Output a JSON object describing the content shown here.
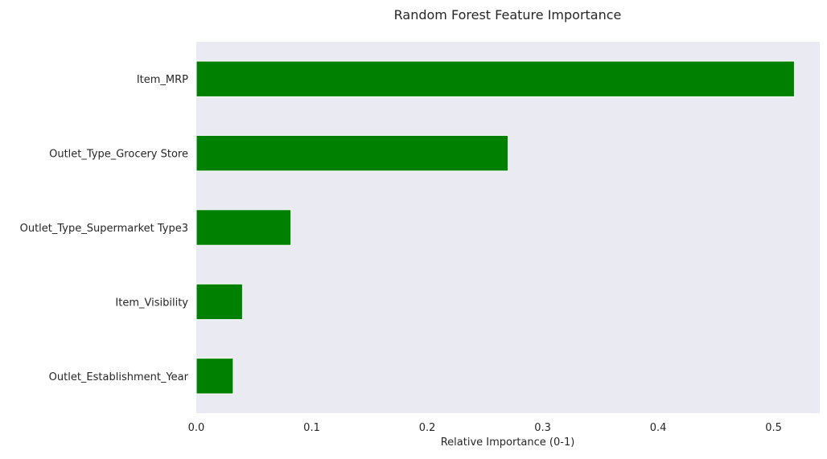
{
  "chart_data": {
    "type": "bar",
    "orientation": "horizontal",
    "title": "Random Forest Feature Importance",
    "xlabel": "Relative Importance (0-1)",
    "ylabel": "",
    "xlim": [
      0,
      0.54
    ],
    "xticks": [
      "0.0",
      "0.1",
      "0.2",
      "0.3",
      "0.4",
      "0.5"
    ],
    "categories": [
      "Item_MRP",
      "Outlet_Type_Grocery Store",
      "Outlet_Type_Supermarket Type3",
      "Item_Visibility",
      "Outlet_Establishment_Year"
    ],
    "values": [
      0.518,
      0.27,
      0.082,
      0.04,
      0.032
    ],
    "bar_color": "#008000",
    "plot_background": "#EAEAF2",
    "grid": false,
    "legend": "none"
  }
}
